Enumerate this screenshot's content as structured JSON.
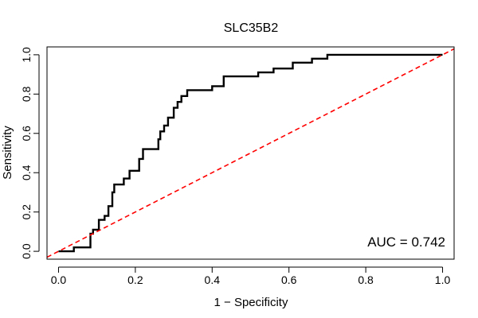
{
  "chart_data": {
    "type": "line",
    "title": "SLC35B2",
    "xlabel": "1 − Specificity",
    "ylabel": "Sensitivity",
    "xlim": [
      -0.03,
      1.03
    ],
    "ylim": [
      -0.04,
      1.04
    ],
    "x_ticks": [
      0.0,
      0.2,
      0.4,
      0.6,
      0.8,
      1.0
    ],
    "y_ticks": [
      0.0,
      0.2,
      0.4,
      0.6,
      0.8,
      1.0
    ],
    "x_tick_labels": [
      "0.0",
      "0.2",
      "0.4",
      "0.6",
      "0.8",
      "1.0"
    ],
    "y_tick_labels": [
      "0.0",
      "0.2",
      "0.4",
      "0.6",
      "0.8",
      "1.0"
    ],
    "grid": false,
    "annotation": "AUC = 0.742",
    "series": [
      {
        "role": "roc-curve",
        "color": "#000000",
        "style": "solid",
        "x": [
          0.0,
          0.0,
          0.04,
          0.04,
          0.083,
          0.083,
          0.09,
          0.09,
          0.105,
          0.105,
          0.12,
          0.12,
          0.13,
          0.13,
          0.14,
          0.14,
          0.145,
          0.145,
          0.17,
          0.17,
          0.185,
          0.185,
          0.21,
          0.21,
          0.22,
          0.22,
          0.26,
          0.26,
          0.265,
          0.265,
          0.275,
          0.275,
          0.285,
          0.285,
          0.3,
          0.3,
          0.31,
          0.31,
          0.32,
          0.32,
          0.335,
          0.335,
          0.4,
          0.4,
          0.43,
          0.43,
          0.52,
          0.52,
          0.56,
          0.56,
          0.61,
          0.61,
          0.66,
          0.66,
          0.7,
          0.7,
          1.0
        ],
        "y": [
          0.0,
          0.0,
          0.0,
          0.02,
          0.02,
          0.09,
          0.09,
          0.11,
          0.11,
          0.16,
          0.16,
          0.18,
          0.18,
          0.23,
          0.23,
          0.3,
          0.3,
          0.34,
          0.34,
          0.37,
          0.37,
          0.41,
          0.41,
          0.47,
          0.47,
          0.52,
          0.52,
          0.57,
          0.57,
          0.61,
          0.61,
          0.64,
          0.64,
          0.68,
          0.68,
          0.73,
          0.73,
          0.76,
          0.76,
          0.79,
          0.79,
          0.82,
          0.82,
          0.84,
          0.84,
          0.89,
          0.89,
          0.91,
          0.91,
          0.93,
          0.93,
          0.96,
          0.96,
          0.98,
          0.98,
          1.0,
          1.0
        ]
      },
      {
        "role": "reference-diagonal",
        "color": "#ff0000",
        "style": "dashed",
        "x": [
          -0.03,
          1.03
        ],
        "y": [
          -0.03,
          1.03
        ]
      }
    ]
  }
}
